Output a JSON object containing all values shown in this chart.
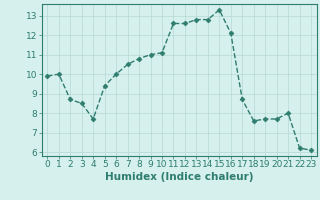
{
  "x": [
    0,
    1,
    2,
    3,
    4,
    5,
    6,
    7,
    8,
    9,
    10,
    11,
    12,
    13,
    14,
    15,
    16,
    17,
    18,
    19,
    20,
    21,
    22,
    23
  ],
  "y": [
    9.9,
    10.0,
    8.7,
    8.5,
    7.7,
    9.4,
    10.0,
    10.5,
    10.8,
    11.0,
    11.1,
    12.6,
    12.6,
    12.8,
    12.8,
    13.3,
    12.1,
    8.7,
    7.6,
    7.7,
    7.7,
    8.0,
    6.2,
    6.1
  ],
  "line_color": "#2e7d6e",
  "marker": "D",
  "marker_size": 2.5,
  "bg_color": "#d6f0ee",
  "grid_color": "#b5d8d4",
  "xlabel": "Humidex (Indice chaleur)",
  "ylim": [
    5.8,
    13.6
  ],
  "xlim": [
    -0.5,
    23.5
  ],
  "yticks": [
    6,
    7,
    8,
    9,
    10,
    11,
    12,
    13
  ],
  "xticks": [
    0,
    1,
    2,
    3,
    4,
    5,
    6,
    7,
    8,
    9,
    10,
    11,
    12,
    13,
    14,
    15,
    16,
    17,
    18,
    19,
    20,
    21,
    22,
    23
  ],
  "tick_color": "#2e7d6e",
  "label_color": "#2e7d6e",
  "font_size": 6.5,
  "xlabel_fontsize": 7.5,
  "linewidth": 1.0
}
